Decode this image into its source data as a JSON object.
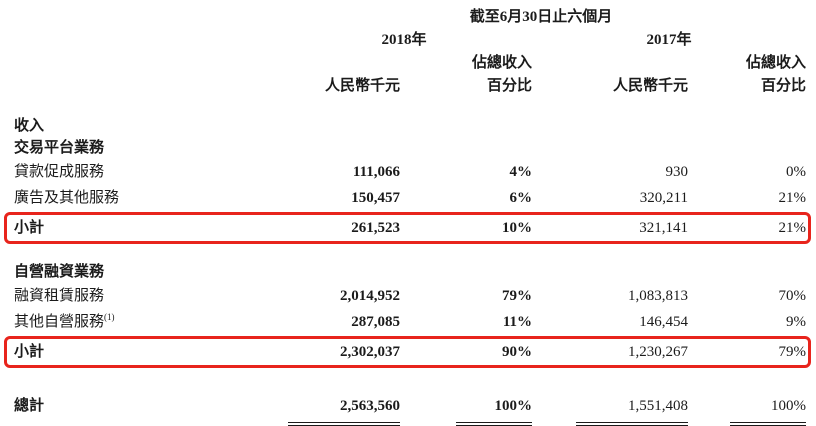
{
  "table": {
    "period_header": "截至6月30日止六個月",
    "highlight_color": "#e8241c",
    "col_groups": [
      {
        "year": "2018年",
        "rmb_header": "人民幣千元",
        "pct_header_line1": "佔總收入",
        "pct_header_line2": "百分比"
      },
      {
        "year": "2017年",
        "rmb_header": "人民幣千元",
        "pct_header_line1": "佔總收入",
        "pct_header_line2": "百分比"
      }
    ],
    "rows": [
      {
        "type": "section",
        "label": "收入"
      },
      {
        "type": "section",
        "label": "交易平台業務"
      },
      {
        "type": "item",
        "label": "貸款促成服務",
        "v2018": "111,066",
        "p2018": "4%",
        "v2017": "930",
        "p2017": "0%"
      },
      {
        "type": "item",
        "label": "廣告及其他服務",
        "v2018": "150,457",
        "p2018": "6%",
        "v2017": "320,211",
        "p2017": "21%"
      },
      {
        "type": "subtotal",
        "label": "小計",
        "v2018": "261,523",
        "p2018": "10%",
        "v2017": "321,141",
        "p2017": "21%",
        "highlight": true
      },
      {
        "type": "spacer",
        "h": 16
      },
      {
        "type": "section",
        "label": "自營融資業務"
      },
      {
        "type": "item",
        "label": "融資租賃服務",
        "v2018": "2,014,952",
        "p2018": "79%",
        "v2017": "1,083,813",
        "p2017": "70%"
      },
      {
        "type": "item",
        "label": "其他自營服務",
        "sup": "(1)",
        "v2018": "287,085",
        "p2018": "11%",
        "v2017": "146,454",
        "p2017": "9%"
      },
      {
        "type": "subtotal",
        "label": "小計",
        "v2018": "2,302,037",
        "p2018": "90%",
        "v2017": "1,230,267",
        "p2017": "79%",
        "highlight": true
      },
      {
        "type": "spacer",
        "h": 22
      },
      {
        "type": "total",
        "label": "總計",
        "v2018": "2,563,560",
        "p2018": "100%",
        "v2017": "1,551,408",
        "p2017": "100%"
      }
    ]
  }
}
